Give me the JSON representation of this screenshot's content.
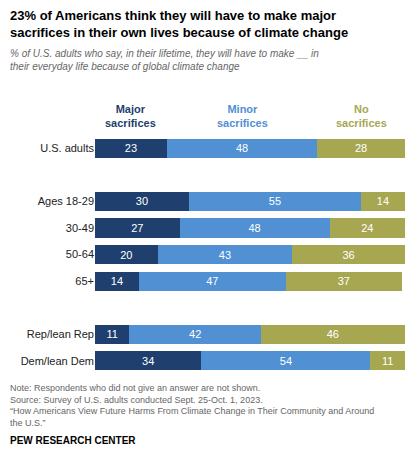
{
  "chart_data": {
    "type": "bar",
    "orientation": "horizontal",
    "stacked": true,
    "data_labels": true,
    "tick_labels": "y",
    "legend": "top",
    "title": "23% of Americans think they will have to make major sacrifices in their own lives because of climate change",
    "subtitle": "% of U.S. adults who say, in their lifetime, they will have to make __ in their everyday life because of global climate change",
    "notes": [
      "Note: Respondents who did not give an answer are not shown.",
      "Source: Survey of U.S. adults conducted Sept. 25-Oct. 1, 2023.",
      "“How Americans View Future Harms From Climate Change in Their Community and Around the U.S.”"
    ],
    "credit": "PEW RESEARCH CENTER",
    "categories": [
      "U.S. adults",
      null,
      "Ages 18-29",
      "30-49",
      "50-64",
      "65+",
      null,
      "Rep/lean Rep",
      "Dem/lean Dem"
    ],
    "series": [
      {
        "name": "Major sacrifices",
        "color": "#1f3f6e",
        "values": [
          23,
          null,
          30,
          27,
          20,
          14,
          null,
          11,
          34
        ]
      },
      {
        "name": "Minor sacrifices",
        "color": "#5090d3",
        "values": [
          48,
          null,
          55,
          48,
          43,
          47,
          null,
          42,
          54
        ]
      },
      {
        "name": "No sacrifices",
        "color": "#a7a752",
        "values": [
          28,
          null,
          14,
          24,
          36,
          37,
          null,
          46,
          11
        ]
      }
    ],
    "xlim": [
      0,
      100
    ]
  }
}
